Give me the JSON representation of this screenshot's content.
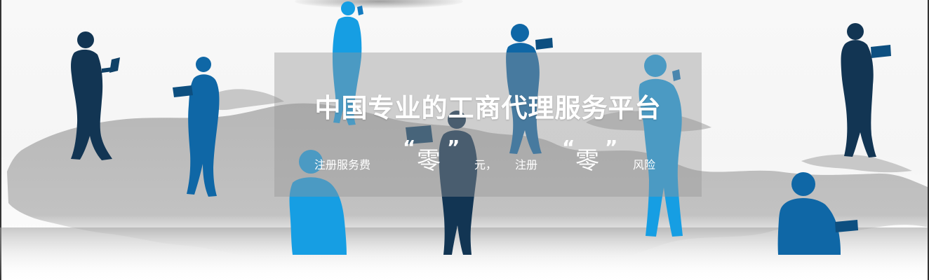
{
  "banner": {
    "headline": "中国专业的工商代理服务平台",
    "sub_prefix": "注册服务费",
    "zero_1": "零",
    "sub_middle": "元，",
    "sub_mid_2": "注册",
    "zero_2": "零",
    "sub_suffix": "风险",
    "quote_open": "“",
    "quote_close": "”"
  },
  "colors": {
    "navy": "#123553",
    "mid_blue": "#0f67a6",
    "bright_blue": "#169ee3",
    "map_gray": "#bdbdbd"
  },
  "icons": [
    "world-map-graphic",
    "person-silhouette"
  ]
}
